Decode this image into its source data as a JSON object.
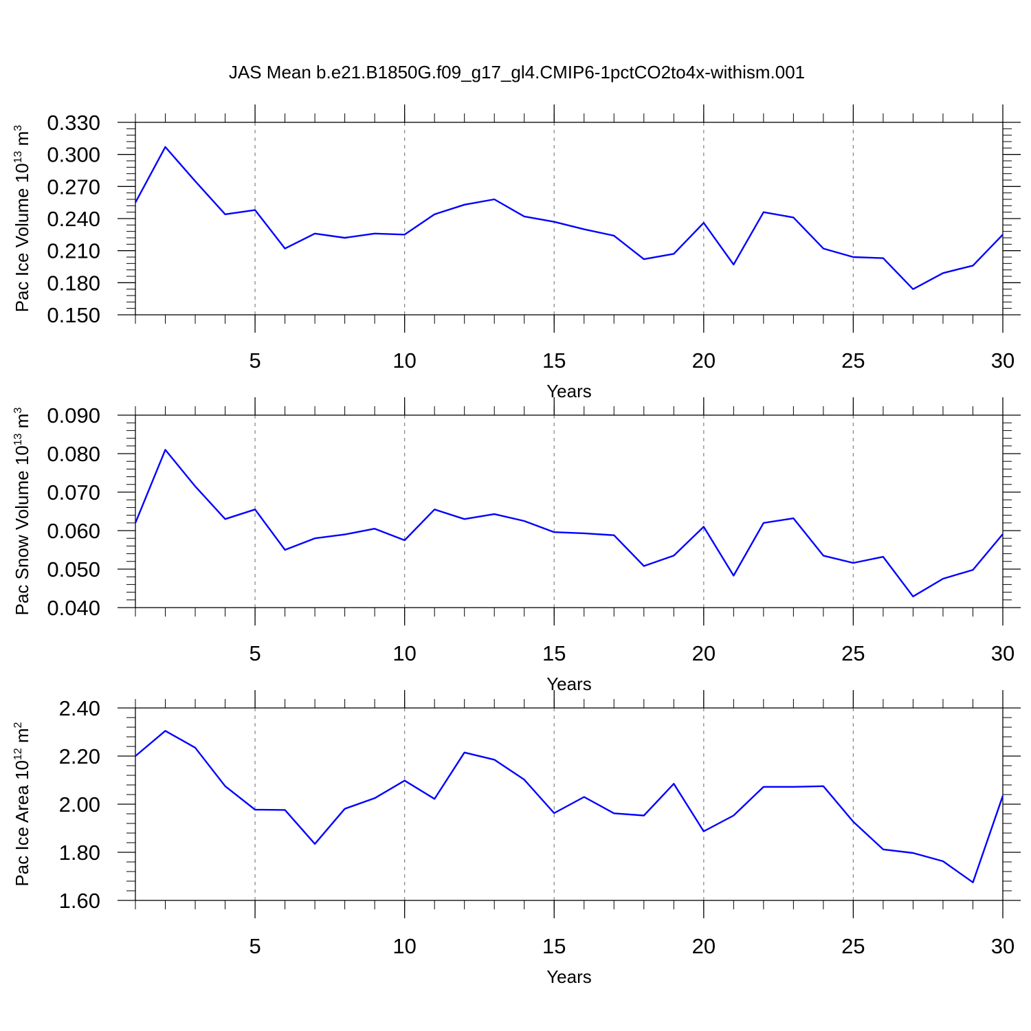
{
  "title": "JAS Mean b.e21.B1850G.f09_g17_gl4.CMIP6-1pctCO2to4x-withism.001",
  "colors": {
    "line": "#0000ff",
    "axis": "#000000",
    "grid": "#808080"
  },
  "chart_data": [
    {
      "type": "line",
      "xlabel": "Years",
      "ylabel": {
        "text": "Pac Ice Volume 10",
        "exp": "13",
        "unit": " m",
        "unit_exp": "3"
      },
      "xlim": [
        1,
        30
      ],
      "ylim": [
        0.15,
        0.33
      ],
      "x_ticks": [
        5,
        10,
        15,
        20,
        25,
        30
      ],
      "y_ticks": [
        "0.150",
        "0.180",
        "0.210",
        "0.240",
        "0.270",
        "0.300",
        "0.330"
      ],
      "grid": "vertical dashed at major x ticks",
      "series": [
        {
          "x": [
            1,
            2,
            3,
            4,
            5,
            6,
            7,
            8,
            9,
            10,
            11,
            12,
            13,
            14,
            15,
            16,
            17,
            18,
            19,
            20,
            21,
            22,
            23,
            24,
            25,
            26,
            27,
            28,
            29,
            30
          ],
          "values": [
            0.255,
            0.307,
            0.275,
            0.244,
            0.248,
            0.212,
            0.226,
            0.222,
            0.226,
            0.225,
            0.244,
            0.253,
            0.258,
            0.242,
            0.237,
            0.23,
            0.224,
            0.202,
            0.207,
            0.236,
            0.197,
            0.246,
            0.241,
            0.212,
            0.204,
            0.203,
            0.174,
            0.189,
            0.196,
            0.225
          ]
        }
      ]
    },
    {
      "type": "line",
      "xlabel": "Years",
      "ylabel": {
        "text": "Pac Snow Volume 10",
        "exp": "13",
        "unit": " m",
        "unit_exp": "3"
      },
      "xlim": [
        1,
        30
      ],
      "ylim": [
        0.04,
        0.09
      ],
      "x_ticks": [
        5,
        10,
        15,
        20,
        25,
        30
      ],
      "y_ticks": [
        "0.040",
        "0.050",
        "0.060",
        "0.070",
        "0.080",
        "0.090"
      ],
      "grid": "vertical dashed at major x ticks",
      "series": [
        {
          "x": [
            1,
            2,
            3,
            4,
            5,
            6,
            7,
            8,
            9,
            10,
            11,
            12,
            13,
            14,
            15,
            16,
            17,
            18,
            19,
            20,
            21,
            22,
            23,
            24,
            25,
            26,
            27,
            28,
            29,
            30
          ],
          "values": [
            0.062,
            0.081,
            0.0715,
            0.063,
            0.0655,
            0.055,
            0.058,
            0.059,
            0.0605,
            0.0575,
            0.0655,
            0.063,
            0.0643,
            0.0625,
            0.0596,
            0.0593,
            0.0588,
            0.0508,
            0.0535,
            0.061,
            0.0483,
            0.062,
            0.0632,
            0.0535,
            0.0516,
            0.0532,
            0.0429,
            0.0475,
            0.0498,
            0.0591
          ]
        }
      ]
    },
    {
      "type": "line",
      "xlabel": "Years",
      "ylabel": {
        "text": "Pac Ice Area 10",
        "exp": "12",
        "unit": " m",
        "unit_exp": "2"
      },
      "xlim": [
        1,
        30
      ],
      "ylim": [
        1.6,
        2.4
      ],
      "x_ticks": [
        5,
        10,
        15,
        20,
        25,
        30
      ],
      "y_ticks": [
        "1.60",
        "1.80",
        "2.00",
        "2.20",
        "2.40"
      ],
      "grid": "vertical dashed at major x ticks",
      "series": [
        {
          "x": [
            1,
            2,
            3,
            4,
            5,
            6,
            7,
            8,
            9,
            10,
            11,
            12,
            13,
            14,
            15,
            16,
            17,
            18,
            19,
            20,
            21,
            22,
            23,
            24,
            25,
            26,
            27,
            28,
            29,
            30
          ],
          "values": [
            2.2,
            2.305,
            2.235,
            2.075,
            1.977,
            1.976,
            1.835,
            1.981,
            2.025,
            2.098,
            2.022,
            2.215,
            2.185,
            2.102,
            1.963,
            2.03,
            1.962,
            1.953,
            2.085,
            1.887,
            1.953,
            2.072,
            2.072,
            2.075,
            1.927,
            1.812,
            1.797,
            1.763,
            1.675,
            2.035
          ]
        }
      ]
    }
  ]
}
